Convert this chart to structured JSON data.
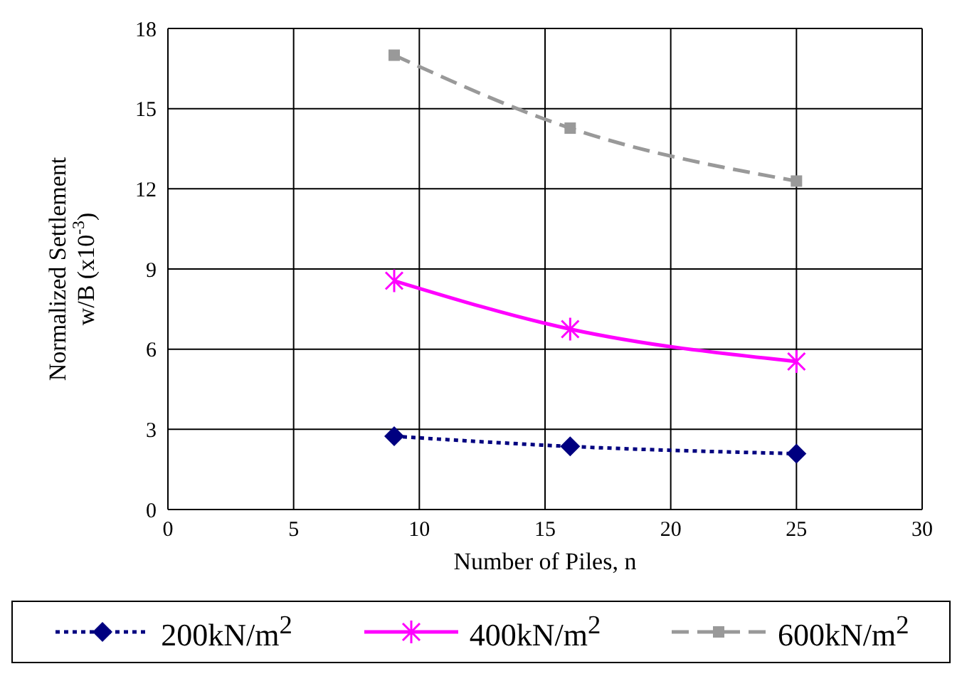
{
  "chart_data": {
    "type": "line",
    "xlabel": "Number of Piles, n",
    "ylabel": "Normalized Settlement w/B (x10$^{-3}$)",
    "x": [
      9,
      16,
      25
    ],
    "xlim": [
      0,
      30
    ],
    "xticks": [
      0,
      5,
      10,
      15,
      20,
      25,
      30
    ],
    "ylim": [
      0,
      18
    ],
    "yticks": [
      0,
      3,
      6,
      9,
      12,
      15,
      18
    ],
    "grid": true,
    "legend": "bottom",
    "series": [
      {
        "name": "200kN/m$^{2}$",
        "color": "#000080",
        "values": [
          2.74,
          2.36,
          2.09
        ],
        "marker": "diamond",
        "line_style": "dotted"
      },
      {
        "name": "400kN/m$^{2}$",
        "color": "#ff00ff",
        "values": [
          8.56,
          6.75,
          5.54
        ],
        "marker": "cross",
        "line_style": "solid"
      },
      {
        "name": "600kN/m$^{2}$",
        "color": "#999999",
        "values": [
          17.0,
          14.27,
          12.29
        ],
        "marker": "square",
        "line_style": "dashed"
      }
    ]
  }
}
